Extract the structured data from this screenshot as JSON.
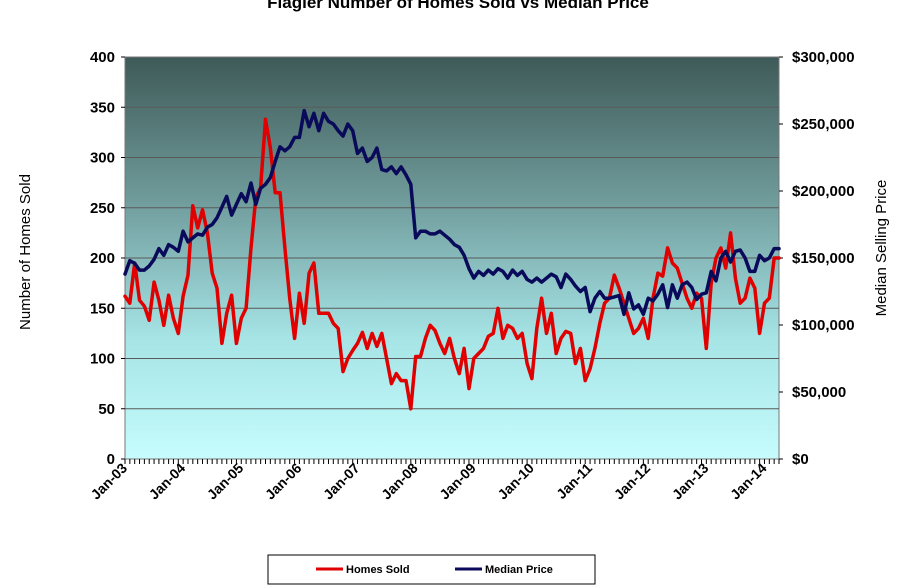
{
  "chart_data": {
    "type": "line",
    "title": "Flagler Number of Homes Sold vs Median Price",
    "ylabel": "Number of Homes  Sold",
    "y2label": "Median Selling Price",
    "ylim": [
      0,
      400
    ],
    "y2lim": [
      0,
      300000
    ],
    "yticks": [
      "0",
      "50",
      "100",
      "150",
      "200",
      "250",
      "300",
      "350",
      "400"
    ],
    "y2ticks": [
      "$0",
      "$50,000",
      "$100,000",
      "$150,000",
      "$200,000",
      "$250,000",
      "$300,000"
    ],
    "xticks": [
      "Jan-03",
      "Jan-04",
      "Jan-05",
      "Jan-06",
      "Jan-07",
      "Jan-08",
      "Jan-09",
      "Jan-10",
      "Jan-11",
      "Jan-12",
      "Jan-13",
      "Jan-14"
    ],
    "x_range": [
      "Jan-03",
      "Aug-14"
    ],
    "grid": true,
    "legend": "bottom",
    "series": [
      {
        "name": "Homes Sold",
        "axis": "left",
        "color": "#e00000",
        "values": [
          162,
          155,
          195,
          158,
          152,
          138,
          176,
          158,
          133,
          163,
          140,
          125,
          162,
          183,
          252,
          230,
          248,
          225,
          185,
          170,
          115,
          145,
          163,
          115,
          140,
          150,
          210,
          260,
          270,
          338,
          310,
          265,
          265,
          210,
          160,
          120,
          165,
          135,
          185,
          195,
          145,
          145,
          145,
          135,
          130,
          87,
          100,
          108,
          115,
          126,
          110,
          125,
          112,
          125,
          100,
          75,
          85,
          78,
          78,
          50,
          102,
          102,
          120,
          133,
          128,
          115,
          105,
          120,
          100,
          85,
          110,
          70,
          100,
          105,
          110,
          122,
          125,
          150,
          120,
          133,
          130,
          120,
          125,
          95,
          80,
          130,
          160,
          125,
          145,
          105,
          120,
          127,
          125,
          95,
          110,
          78,
          90,
          110,
          135,
          155,
          160,
          183,
          170,
          155,
          140,
          125,
          130,
          140,
          120,
          160,
          185,
          182,
          210,
          195,
          190,
          175,
          160,
          150,
          165,
          160,
          110,
          175,
          200,
          210,
          190,
          225,
          180,
          155,
          160,
          180,
          170,
          125,
          155,
          160,
          200,
          200
        ]
      },
      {
        "name": "Median Price",
        "axis": "right",
        "color": "#0a0a5a",
        "values": [
          138000,
          148000,
          146000,
          141000,
          141000,
          144000,
          149000,
          157000,
          152000,
          160000,
          158000,
          155000,
          170000,
          162000,
          165000,
          168000,
          167000,
          173000,
          175000,
          180000,
          188000,
          196000,
          182000,
          190000,
          198000,
          192000,
          206000,
          190000,
          202000,
          205000,
          210000,
          222000,
          233000,
          230000,
          233000,
          240000,
          240000,
          260000,
          248000,
          258000,
          245000,
          258000,
          252000,
          250000,
          245000,
          241000,
          250000,
          245000,
          228000,
          232000,
          222000,
          225000,
          232000,
          216000,
          215000,
          218000,
          213000,
          218000,
          212000,
          205000,
          165000,
          170000,
          170000,
          168000,
          168000,
          170000,
          167000,
          164000,
          160000,
          158000,
          152000,
          142000,
          135000,
          140000,
          137000,
          141000,
          138000,
          142000,
          140000,
          135000,
          141000,
          137000,
          140000,
          134000,
          132000,
          135000,
          132000,
          135000,
          138000,
          136000,
          128000,
          138000,
          134000,
          129000,
          125000,
          128000,
          110000,
          120000,
          125000,
          120000,
          120000,
          121000,
          122000,
          108000,
          124000,
          112000,
          115000,
          108000,
          120000,
          118000,
          123000,
          130000,
          113000,
          130000,
          120000,
          130000,
          132000,
          128000,
          119000,
          123000,
          124000,
          140000,
          133000,
          150000,
          155000,
          147000,
          155000,
          156000,
          150000,
          140000,
          140000,
          152000,
          148000,
          150000,
          157000,
          157000
        ]
      }
    ]
  }
}
